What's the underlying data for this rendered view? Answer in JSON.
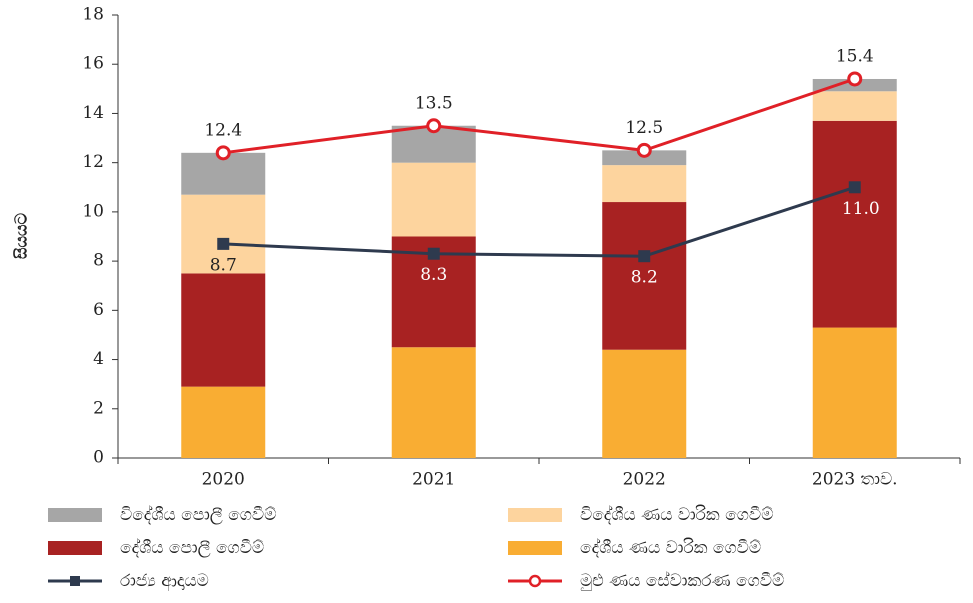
{
  "chart_data": {
    "type": "bar",
    "stacked": true,
    "y_label": "සියයට",
    "categories": [
      "2020",
      "2021",
      "2022",
      "2023 තාව."
    ],
    "ylim": [
      0,
      18
    ],
    "yticks": [
      0,
      2,
      4,
      6,
      8,
      10,
      12,
      14,
      16,
      18
    ],
    "series": [
      {
        "name": "දේශීය ණය වාරික ගෙවීම්",
        "type": "bar",
        "color": "#f9ad33",
        "values": [
          2.9,
          4.5,
          4.4,
          5.3
        ]
      },
      {
        "name": "දේශීය පොලී ගෙවීම්",
        "type": "bar",
        "color": "#a82222",
        "values": [
          4.6,
          4.5,
          6.0,
          8.4
        ]
      },
      {
        "name": "විදේශීය ණය වාරික ගෙවීම්",
        "type": "bar",
        "color": "#fdd49e",
        "values": [
          3.2,
          3.0,
          1.5,
          1.2
        ]
      },
      {
        "name": "විදේශීය පොලී ගෙවීම්",
        "type": "bar",
        "color": "#a6a6a6",
        "values": [
          1.7,
          1.5,
          0.6,
          0.5
        ]
      },
      {
        "name": "රාජ්‍ය ආදායම",
        "type": "line",
        "marker": "square",
        "color": "#2e3a4e",
        "values": [
          8.7,
          8.3,
          8.2,
          11.0
        ],
        "value_labels": [
          "8.7",
          "8.3",
          "8.2",
          "11.0"
        ]
      },
      {
        "name": "මුළු ණය සේවාකරණ ගෙවීම්",
        "type": "line",
        "marker": "circle",
        "color": "#e02027",
        "values": [
          12.4,
          13.5,
          12.5,
          15.4
        ]
      }
    ]
  }
}
